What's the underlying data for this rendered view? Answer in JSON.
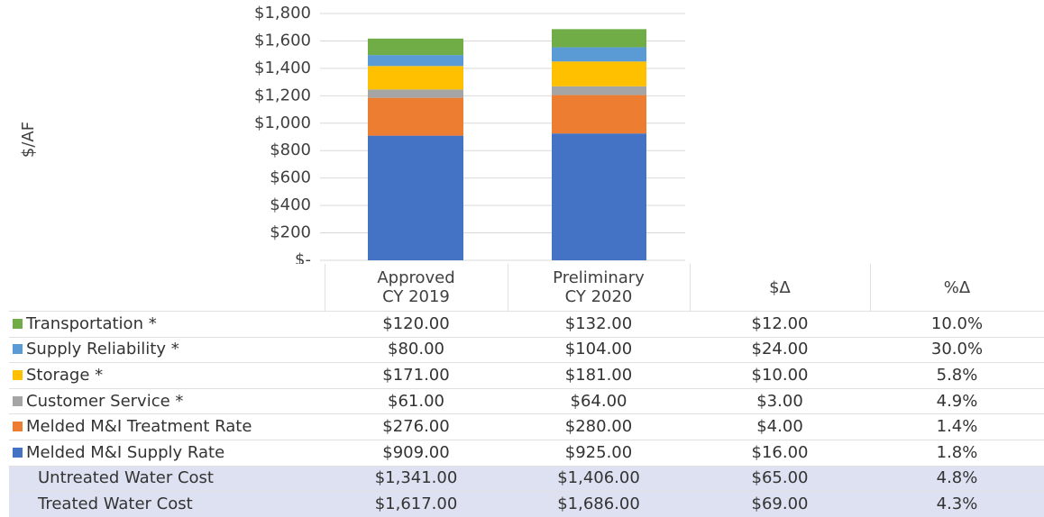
{
  "chart_data": {
    "type": "stacked_bar",
    "y_label": "$/AF",
    "categories": [
      "Approved\nCY 2019",
      "Preliminary\nCY 2020"
    ],
    "ylim": [
      0,
      1800
    ],
    "yticks": [
      {
        "value": 0,
        "label": "$-"
      },
      {
        "value": 200,
        "label": "$200"
      },
      {
        "value": 400,
        "label": "$400"
      },
      {
        "value": 600,
        "label": "$600"
      },
      {
        "value": 800,
        "label": "$800"
      },
      {
        "value": 1000,
        "label": "$1,000"
      },
      {
        "value": 1200,
        "label": "$1,200"
      },
      {
        "value": 1400,
        "label": "$1,400"
      },
      {
        "value": 1600,
        "label": "$1,600"
      },
      {
        "value": 1800,
        "label": "$1,800"
      }
    ],
    "grid": true,
    "column_headers": [
      "$Δ",
      "%Δ"
    ],
    "series": [
      {
        "name": "Transportation *",
        "color": "#70ad47",
        "values": [
          120,
          132
        ],
        "value_labels": [
          "$120.00",
          "$132.00"
        ],
        "change": "$12.00",
        "change_pct": "10.0%"
      },
      {
        "name": "Supply Reliability *",
        "color": "#5b9bd5",
        "values": [
          80,
          104
        ],
        "value_labels": [
          "$80.00",
          "$104.00"
        ],
        "change": "$24.00",
        "change_pct": "30.0%"
      },
      {
        "name": "Storage *",
        "color": "#ffc000",
        "values": [
          171,
          181
        ],
        "value_labels": [
          "$171.00",
          "$181.00"
        ],
        "change": "$10.00",
        "change_pct": "5.8%"
      },
      {
        "name": "Customer Service *",
        "color": "#a5a5a5",
        "values": [
          61,
          64
        ],
        "value_labels": [
          "$61.00",
          "$64.00"
        ],
        "change": "$3.00",
        "change_pct": "4.9%"
      },
      {
        "name": "Melded M&I Treatment Rate",
        "color": "#ed7d31",
        "values": [
          276,
          280
        ],
        "value_labels": [
          "$276.00",
          "$280.00"
        ],
        "change": "$4.00",
        "change_pct": "1.4%"
      },
      {
        "name": "Melded M&I Supply Rate",
        "color": "#4472c4",
        "values": [
          909,
          925
        ],
        "value_labels": [
          "$909.00",
          "$925.00"
        ],
        "change": "$16.00",
        "change_pct": "1.8%"
      }
    ],
    "totals": [
      {
        "name": "Untreated Water Cost",
        "values": [
          1341,
          1406
        ],
        "value_labels": [
          "$1,341.00",
          "$1,406.00"
        ],
        "change": "$65.00",
        "change_pct": "4.8%"
      },
      {
        "name": "Treated Water Cost",
        "values": [
          1617,
          1686
        ],
        "value_labels": [
          "$1,617.00",
          "$1,686.00"
        ],
        "change": "$69.00",
        "change_pct": "4.3%"
      }
    ]
  }
}
